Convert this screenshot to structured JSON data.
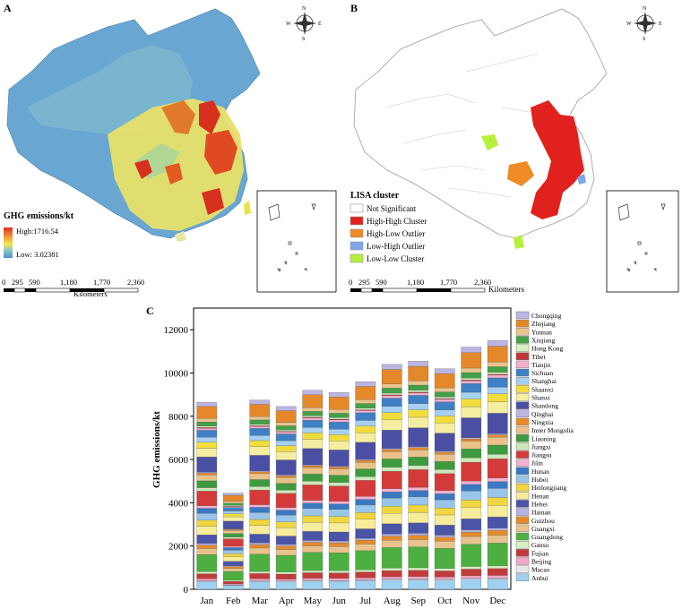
{
  "panels": {
    "a": "A",
    "b": "B",
    "c": "C"
  },
  "map_a": {
    "legend_title": "GHG emissions/kt",
    "high_label": "High:1716.54",
    "low_label": "Low: 3.02381",
    "scale_ticks": [
      "0",
      "295",
      "590",
      "1,180",
      "1,770",
      "2,360"
    ],
    "scale_unit": "Kilometers",
    "compass": {
      "n": "N",
      "s": "S",
      "e": "E",
      "w": "W"
    },
    "colors": {
      "high": "#d7301f",
      "mid": "#f5e74f",
      "low": "#4f8fc9",
      "base": "#6ba3cf"
    }
  },
  "map_b": {
    "legend_title": "LISA cluster",
    "legend_items": [
      {
        "label": "Not Significant",
        "color": "#ffffff"
      },
      {
        "label": "High-High Cluster",
        "color": "#e0211d"
      },
      {
        "label": "High-Low Outlier",
        "color": "#f08a24"
      },
      {
        "label": "Low-High Outlier",
        "color": "#7ea6e8"
      },
      {
        "label": "Low-Low Cluster",
        "color": "#b6f03a"
      }
    ],
    "scale_ticks": [
      "0",
      "295",
      "590",
      "1,180",
      "1,770",
      "2,360"
    ],
    "scale_unit": "Kilometers",
    "compass": {
      "n": "N",
      "s": "S",
      "e": "E",
      "w": "W"
    }
  },
  "chart_data": {
    "type": "bar",
    "stacked": true,
    "ylabel": "GHG emissions/kt",
    "xlabel": "",
    "ylim": [
      0,
      13000
    ],
    "yticks": [
      "0",
      "2000",
      "4000",
      "6000",
      "8000",
      "10000",
      "12000"
    ],
    "ytick_values": [
      0,
      2000,
      4000,
      6000,
      8000,
      10000,
      12000
    ],
    "categories": [
      "Jan",
      "Feb",
      "Mar",
      "Apr",
      "May",
      "Jun",
      "Jul",
      "Aug",
      "Sep",
      "Oct",
      "Nov",
      "Dec"
    ],
    "totals": [
      8650,
      4450,
      8750,
      8450,
      9200,
      9100,
      9600,
      10400,
      10550,
      10200,
      11200,
      11500
    ],
    "series": [
      {
        "name": "Anhui",
        "color": "#9fd0f0",
        "share": 0.045
      },
      {
        "name": "Macao",
        "color": "#e8e8e8",
        "share": 0.004
      },
      {
        "name": "Beijing",
        "color": "#f4a7c8",
        "share": 0.012
      },
      {
        "name": "Fujian",
        "color": "#c23b3b",
        "share": 0.03
      },
      {
        "name": "Gansu",
        "color": "#d7efc2",
        "share": 0.012
      },
      {
        "name": "Guangdong",
        "color": "#4caf3f",
        "share": 0.1
      },
      {
        "name": "Guangxi",
        "color": "#e8c38e",
        "share": 0.035
      },
      {
        "name": "Guizhou",
        "color": "#e58b2c",
        "share": 0.02
      },
      {
        "name": "Hainan",
        "color": "#b9b3e0",
        "share": 0.01
      },
      {
        "name": "Hebei",
        "color": "#4a55a8",
        "share": 0.05
      },
      {
        "name": "Henan",
        "color": "#f7ec9a",
        "share": 0.05
      },
      {
        "name": "Heilongjiang",
        "color": "#f0d640",
        "share": 0.035
      },
      {
        "name": "Hubei",
        "color": "#99c5ea",
        "share": 0.04
      },
      {
        "name": "Hunan",
        "color": "#3b78c2",
        "share": 0.03
      },
      {
        "name": "Jilin",
        "color": "#f2b2d0",
        "share": 0.015
      },
      {
        "name": "Jiangsu",
        "color": "#d43a3a",
        "share": 0.085
      },
      {
        "name": "Jiangxi",
        "color": "#cde8b8",
        "share": 0.02
      },
      {
        "name": "Liaoning",
        "color": "#3e9a3e",
        "share": 0.04
      },
      {
        "name": "Inner Mongolia",
        "color": "#e9c28a",
        "share": 0.035
      },
      {
        "name": "Ningxia",
        "color": "#e98a2a",
        "share": 0.01
      },
      {
        "name": "Qinghai",
        "color": "#bdb6e4",
        "share": 0.005
      },
      {
        "name": "Shandong",
        "color": "#4b4fa3",
        "share": 0.09
      },
      {
        "name": "Shanxi",
        "color": "#f5eea0",
        "share": 0.05
      },
      {
        "name": "Shaanxi",
        "color": "#f2dc3c",
        "share": 0.035
      },
      {
        "name": "Shanghai",
        "color": "#a6d0f2",
        "share": 0.03
      },
      {
        "name": "Sichuan",
        "color": "#3f7fc5",
        "share": 0.04
      },
      {
        "name": "Tianjin",
        "color": "#f3b0cf",
        "share": 0.012
      },
      {
        "name": "Tibet",
        "color": "#c13535",
        "share": 0.004
      },
      {
        "name": "Hong Kong",
        "color": "#d9efc6",
        "share": 0.008
      },
      {
        "name": "Xinjiang",
        "color": "#43a047",
        "share": 0.025
      },
      {
        "name": "Yunnan",
        "color": "#ebc48e",
        "share": 0.02
      },
      {
        "name": "Zhejiang",
        "color": "#e4882a",
        "share": 0.07
      },
      {
        "name": "Chongqing",
        "color": "#bbb5e2",
        "share": 0.025
      }
    ]
  }
}
